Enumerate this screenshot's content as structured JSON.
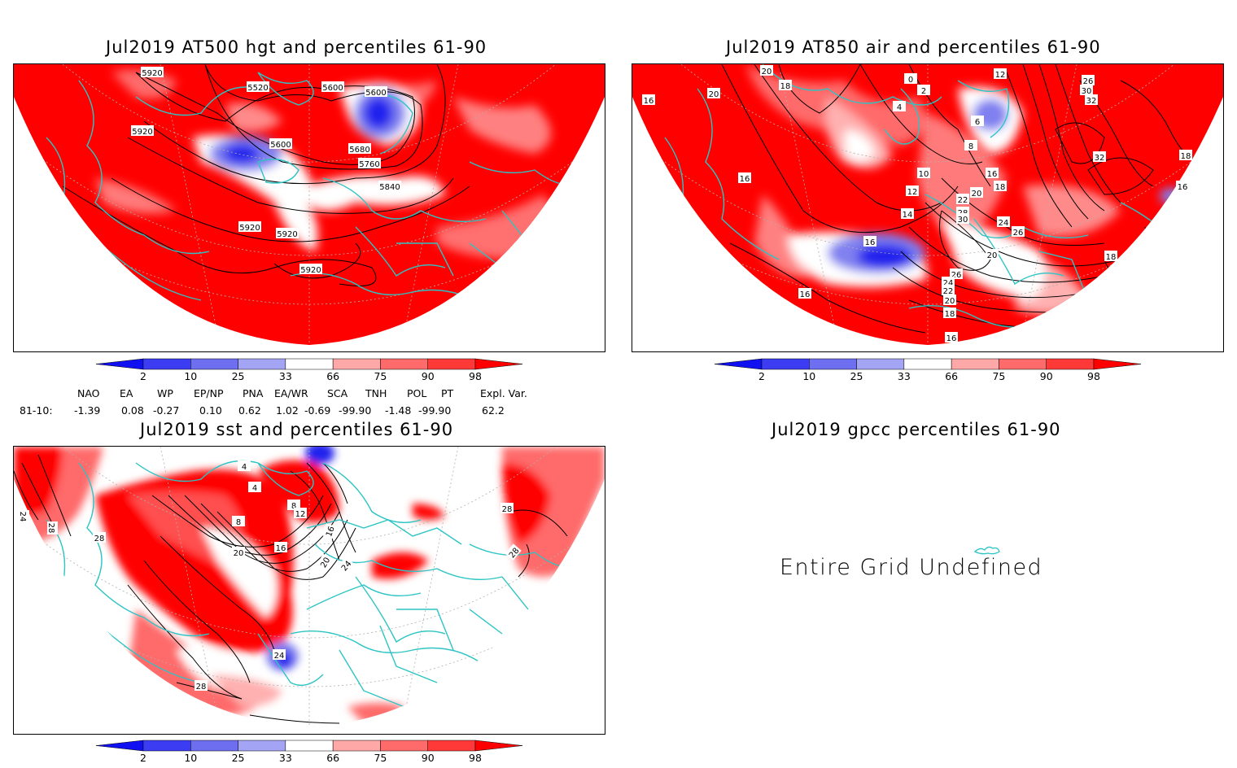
{
  "panels": [
    {
      "title": "Jul2019 AT500 hgt and percentiles 61-90",
      "contour_labels": [
        "5920",
        "5520",
        "5600",
        "5600",
        "5920",
        "5600",
        "5680",
        "5760",
        "5840",
        "5920",
        "5920",
        "5920"
      ]
    },
    {
      "title": "Jul2019 AT850 air and percentiles 61-90",
      "contour_labels": [
        "20",
        "18",
        "20",
        "16",
        "0",
        "2",
        "4",
        "12",
        "6",
        "8",
        "10",
        "12",
        "14",
        "16",
        "16",
        "18",
        "20",
        "22",
        "28",
        "30",
        "24",
        "26",
        "26",
        "24",
        "22",
        "20",
        "18",
        "16",
        "16",
        "16",
        "18",
        "32",
        "32",
        "30",
        "26",
        "16",
        "20",
        "18"
      ]
    },
    {
      "title": "Jul2019 sst and percentiles 61-90",
      "contour_labels": [
        "24",
        "28",
        "28",
        "4",
        "4",
        "8",
        "8",
        "12",
        "16",
        "16",
        "20",
        "20",
        "24",
        "24",
        "28",
        "28",
        "28"
      ]
    },
    {
      "title": "Jul2019 gpcc percentiles 61-90",
      "message": "Entire Grid Undefined"
    }
  ],
  "colorbar": {
    "ticks": [
      "2",
      "10",
      "25",
      "33",
      "66",
      "75",
      "90",
      "98"
    ],
    "colors": [
      "#1010f0",
      "#3c3cf2",
      "#6e6ef0",
      "#a4a4f4",
      "#ffffff",
      "#ffa8a8",
      "#ff6a6a",
      "#ff3838",
      "#ff0000"
    ]
  },
  "indices": {
    "headers": [
      "NAO",
      "EA",
      "WP",
      "EP/NP",
      "PNA",
      "EA/WR",
      "SCA",
      "TNH",
      "POL",
      "PT",
      "Expl. Var."
    ],
    "row_label": "81-10:",
    "values": [
      "-1.39",
      "0.08",
      "-0.27",
      "0.10",
      "0.62",
      "1.02",
      "-0.69",
      "-99.90",
      "-1.48",
      "-99.90",
      "62.2"
    ]
  },
  "colors": {
    "red": "#ff0000",
    "lightred": "#ff6a6a",
    "pink": "#ffb0b0",
    "blue": "#2020ee",
    "lightblue": "#8080f0",
    "coast": "#2cc4c4"
  }
}
